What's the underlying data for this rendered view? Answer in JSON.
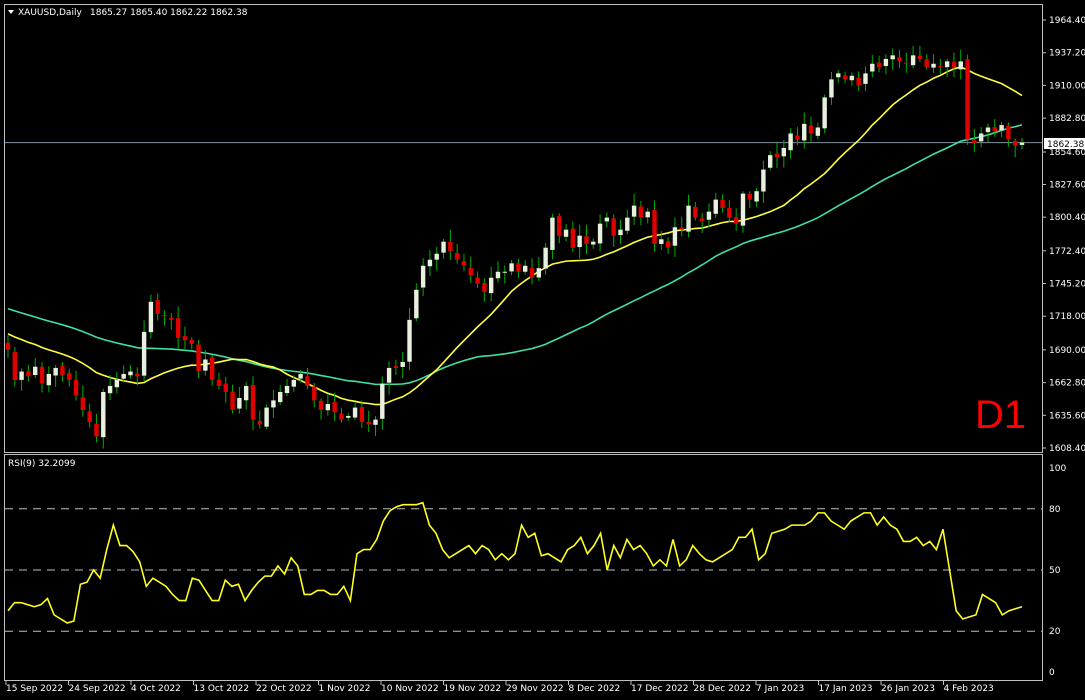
{
  "header": {
    "symbol": "XAUUSD,Daily",
    "ohlc": "1865.27 1865.40 1862.22 1862.38"
  },
  "timeframe_label": "D1",
  "current_price_label": "1862.38",
  "rsi_label": "RSI(9) 32.2099",
  "colors": {
    "background": "#000000",
    "frame": "#c0c0c0",
    "bull_candle": "#e8f0e0",
    "bear_candle": "#e00000",
    "wick": "#00b000",
    "ma_fast": "#ffff40",
    "ma_slow": "#40e0a0",
    "rsi_line": "#ffff20",
    "price_line": "#8090a0",
    "timeframe_label": "#ff0000"
  },
  "chart_data": [
    {
      "type": "candlestick",
      "title": "XAUUSD,Daily",
      "ylim": [
        1608.4,
        1970
      ],
      "price_ticks": [
        "1964.40",
        "1937.20",
        "1910.00",
        "1882.80",
        "1854.60",
        "1827.60",
        "1800.40",
        "1772.40",
        "1745.20",
        "1718.00",
        "1690.00",
        "1662.80",
        "1635.60",
        "1608.40"
      ],
      "date_labels": [
        "15 Sep 2022",
        "24 Sep 2022",
        "4 Oct 2022",
        "13 Oct 2022",
        "22 Oct 2022",
        "1 Nov 2022",
        "10 Nov 2022",
        "19 Nov 2022",
        "29 Nov 2022",
        "8 Dec 2022",
        "17 Dec 2022",
        "28 Dec 2022",
        "7 Jan 2023",
        "17 Jan 2023",
        "26 Jan 2023",
        "4 Feb 2023"
      ],
      "close_series": [
        1690,
        1665,
        1672,
        1668,
        1676,
        1662,
        1670,
        1675,
        1669,
        1665,
        1652,
        1640,
        1630,
        1618,
        1655,
        1660,
        1665,
        1670,
        1672,
        1668,
        1705,
        1730,
        1720,
        1718,
        1715,
        1700,
        1698,
        1695,
        1672,
        1682,
        1665,
        1660,
        1655,
        1640,
        1650,
        1660,
        1632,
        1628,
        1642,
        1648,
        1655,
        1660,
        1665,
        1670,
        1660,
        1648,
        1640,
        1645,
        1638,
        1632,
        1635,
        1642,
        1630,
        1628,
        1632,
        1662,
        1675,
        1675,
        1680,
        1715,
        1740,
        1760,
        1765,
        1770,
        1780,
        1772,
        1765,
        1760,
        1752,
        1745,
        1738,
        1750,
        1755,
        1755,
        1762,
        1755,
        1760,
        1750,
        1758,
        1775,
        1800,
        1785,
        1790,
        1775,
        1785,
        1778,
        1780,
        1795,
        1800,
        1785,
        1790,
        1800,
        1810,
        1800,
        1805,
        1778,
        1782,
        1775,
        1792,
        1790,
        1810,
        1800,
        1797,
        1805,
        1815,
        1808,
        1800,
        1795,
        1820,
        1815,
        1822,
        1840,
        1852,
        1850,
        1858,
        1870,
        1865,
        1878,
        1870,
        1875,
        1900,
        1915,
        1920,
        1915,
        1918,
        1910,
        1920,
        1928,
        1925,
        1932,
        1935,
        1930,
        1928,
        1935,
        1932,
        1925,
        1928,
        1925,
        1930,
        1925,
        1930,
        1865,
        1862,
        1870,
        1875,
        1872,
        1877,
        1865,
        1860,
        1862.38
      ],
      "indicators": [
        "fast moving average",
        "slow moving average"
      ]
    },
    {
      "type": "line",
      "title": "RSI(9) 32.2099",
      "ylim": [
        0,
        100
      ],
      "y_ticks": [
        "100",
        "80",
        "50",
        "20",
        "0"
      ],
      "levels": [
        80,
        50,
        20
      ],
      "values": [
        30,
        34,
        34,
        33,
        32,
        33,
        36,
        28,
        26,
        24,
        25,
        43,
        44,
        50,
        46,
        60,
        72,
        62,
        62,
        59,
        54,
        42,
        46,
        44,
        42,
        38,
        35,
        35,
        46,
        45,
        40,
        35,
        35,
        45,
        42,
        43,
        35,
        40,
        44,
        47,
        47,
        52,
        48,
        56,
        52,
        38,
        38,
        40,
        40,
        38,
        38,
        42,
        35,
        58,
        60,
        60,
        65,
        74,
        79,
        81,
        82,
        82,
        82,
        83,
        72,
        68,
        60,
        56,
        58,
        60,
        62,
        58,
        62,
        60,
        55,
        58,
        55,
        58,
        72,
        66,
        68,
        57,
        58,
        56,
        54,
        60,
        62,
        66,
        58,
        62,
        68,
        50,
        62,
        56,
        65,
        60,
        62,
        58,
        52,
        55,
        52,
        65,
        52,
        55,
        62,
        58,
        55,
        54,
        56,
        58,
        60,
        66,
        66,
        70,
        55,
        58,
        68,
        69,
        70,
        72,
        72,
        72,
        74,
        78,
        78,
        74,
        72,
        70,
        74,
        76,
        78,
        78,
        72,
        76,
        72,
        70,
        64,
        64,
        66,
        62,
        64,
        60,
        70,
        50,
        30,
        26,
        27,
        28,
        38,
        36,
        34,
        28,
        30,
        31,
        32
      ]
    }
  ]
}
